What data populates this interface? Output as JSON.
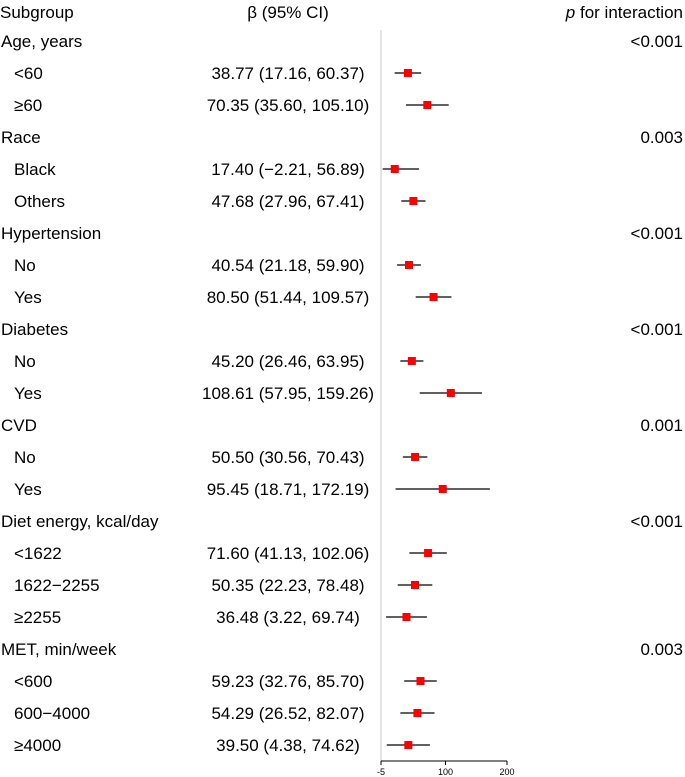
{
  "headers": {
    "subgroup": "Subgroup",
    "estimate": "β (95% CI)",
    "p_interaction_italic": "p",
    "p_interaction_rest": " for interaction"
  },
  "chart_data": {
    "type": "forest",
    "title": "",
    "xlabel": "",
    "xlim": [
      -5,
      200
    ],
    "ticks": [
      "-5",
      "100",
      "200"
    ],
    "tick_values": [
      -5,
      100,
      200
    ],
    "reference_line": -5,
    "colors": {
      "point": "#ff0000",
      "ci": "#000000",
      "reference": "#c8c8c8"
    },
    "groups": [
      {
        "name": "Age, years",
        "p_interaction": "<0.001",
        "rows": [
          {
            "label": "<60",
            "ci_text": "38.77 (17.16, 60.37)",
            "est": 38.77,
            "lo": 17.16,
            "hi": 60.37
          },
          {
            "label": "≥60",
            "ci_text": "70.35 (35.60, 105.10)",
            "est": 70.35,
            "lo": 35.6,
            "hi": 105.1
          }
        ]
      },
      {
        "name": "Race",
        "p_interaction": "0.003",
        "rows": [
          {
            "label": "Black",
            "ci_text": "17.40 (−2.21, 56.89)",
            "est": 17.4,
            "lo": -2.21,
            "hi": 56.89
          },
          {
            "label": "Others",
            "ci_text": "47.68 (27.96, 67.41)",
            "est": 47.68,
            "lo": 27.96,
            "hi": 67.41
          }
        ]
      },
      {
        "name": "Hypertension",
        "p_interaction": "<0.001",
        "rows": [
          {
            "label": "No",
            "ci_text": "40.54 (21.18, 59.90)",
            "est": 40.54,
            "lo": 21.18,
            "hi": 59.9
          },
          {
            "label": "Yes",
            "ci_text": "80.50 (51.44, 109.57)",
            "est": 80.5,
            "lo": 51.44,
            "hi": 109.57
          }
        ]
      },
      {
        "name": "Diabetes",
        "p_interaction": "<0.001",
        "rows": [
          {
            "label": "No",
            "ci_text": "45.20 (26.46, 63.95)",
            "est": 45.2,
            "lo": 26.46,
            "hi": 63.95
          },
          {
            "label": "Yes",
            "ci_text": "108.61 (57.95, 159.26)",
            "est": 108.61,
            "lo": 57.95,
            "hi": 159.26
          }
        ]
      },
      {
        "name": "CVD",
        "p_interaction": "0.001",
        "rows": [
          {
            "label": "No",
            "ci_text": "50.50 (30.56, 70.43)",
            "est": 50.5,
            "lo": 30.56,
            "hi": 70.43
          },
          {
            "label": "Yes",
            "ci_text": "95.45 (18.71, 172.19)",
            "est": 95.45,
            "lo": 18.71,
            "hi": 172.19
          }
        ]
      },
      {
        "name": "Diet energy, kcal/day",
        "p_interaction": "<0.001",
        "rows": [
          {
            "label": "<1622",
            "ci_text": "71.60 (41.13, 102.06)",
            "est": 71.6,
            "lo": 41.13,
            "hi": 102.06
          },
          {
            "label": "1622−2255",
            "ci_text": "50.35 (22.23, 78.48)",
            "est": 50.35,
            "lo": 22.23,
            "hi": 78.48
          },
          {
            "label": "≥2255",
            "ci_text": "36.48 (3.22, 69.74)",
            "est": 36.48,
            "lo": 3.22,
            "hi": 69.74
          }
        ]
      },
      {
        "name": "MET, min/week",
        "p_interaction": "0.003",
        "rows": [
          {
            "label": "<600",
            "ci_text": "59.23 (32.76, 85.70)",
            "est": 59.23,
            "lo": 32.76,
            "hi": 85.7
          },
          {
            "label": "600−4000",
            "ci_text": "54.29 (26.52, 82.07)",
            "est": 54.29,
            "lo": 26.52,
            "hi": 82.07
          },
          {
            "label": "≥4000",
            "ci_text": "39.50 (4.38, 74.62)",
            "est": 39.5,
            "lo": 4.38,
            "hi": 74.62
          }
        ]
      }
    ]
  }
}
